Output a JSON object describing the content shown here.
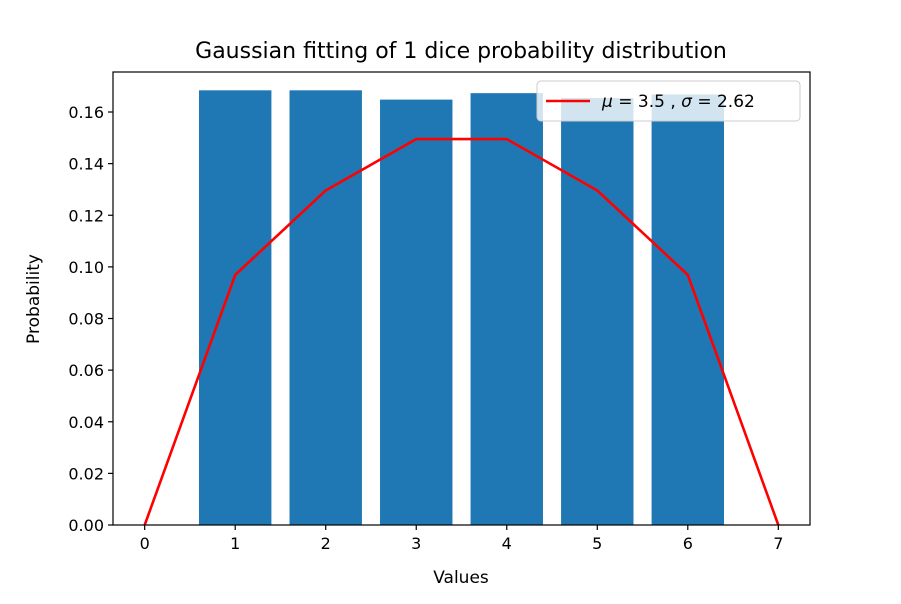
{
  "chart_data": {
    "type": "bar",
    "title": "Gaussian fitting of 1 dice probability distribution",
    "xlabel": "Values",
    "ylabel": "Probability",
    "xlim": [
      -0.35,
      7.35
    ],
    "ylim": [
      0.0,
      0.1755
    ],
    "xticks": [
      0,
      1,
      2,
      3,
      4,
      5,
      6,
      7
    ],
    "xtick_labels": [
      "0",
      "1",
      "2",
      "3",
      "4",
      "5",
      "6",
      "7"
    ],
    "yticks": [
      0.0,
      0.02,
      0.04,
      0.06,
      0.08,
      0.1,
      0.12,
      0.14,
      0.16
    ],
    "ytick_labels": [
      "0.00",
      "0.02",
      "0.04",
      "0.06",
      "0.08",
      "0.10",
      "0.12",
      "0.14",
      "0.16"
    ],
    "grid": false,
    "legend_position": "top-right",
    "bars": {
      "x": [
        1,
        2,
        3,
        4,
        5,
        6
      ],
      "values": [
        0.1684,
        0.1684,
        0.1648,
        0.1673,
        0.1654,
        0.1668
      ],
      "width": 0.8,
      "color": "#1f77b4"
    },
    "series": [
      {
        "name": "μ = 3.5 , σ = 2.62",
        "name_parts": {
          "mu_symbol": "μ",
          "mu_text": " = 3.5 , ",
          "sigma_symbol": "σ",
          "sigma_text": " = 2.62"
        },
        "type": "line",
        "color": "#ff0000",
        "x": [
          0,
          1,
          2,
          3,
          4,
          5,
          6,
          7
        ],
        "values": [
          0.0,
          0.0969,
          0.1296,
          0.1495,
          0.1495,
          0.1296,
          0.0969,
          0.0
        ]
      }
    ]
  }
}
